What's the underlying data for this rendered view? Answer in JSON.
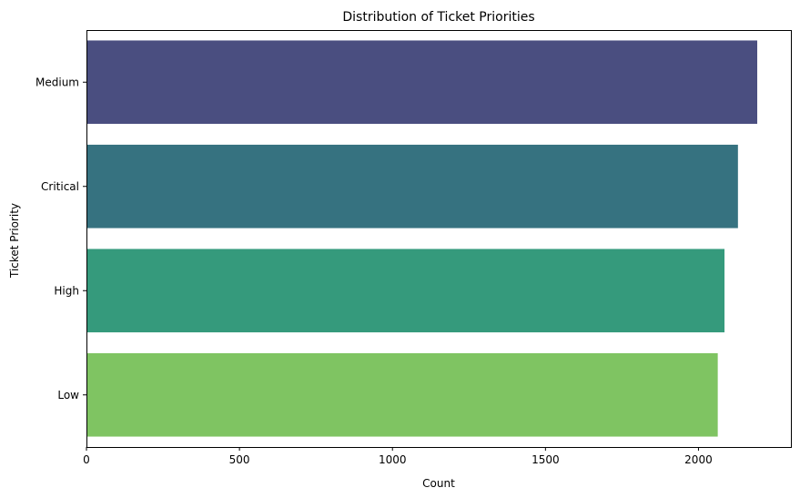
{
  "chart_data": {
    "type": "bar",
    "orientation": "horizontal",
    "title": "Distribution of Ticket Priorities",
    "xlabel": "Count",
    "ylabel": "Ticket Priority",
    "categories": [
      "Medium",
      "Critical",
      "High",
      "Low"
    ],
    "values": [
      2192,
      2129,
      2085,
      2063
    ],
    "colors": [
      "#4a4e80",
      "#367280",
      "#359a7c",
      "#7fc462"
    ],
    "xlim": [
      0,
      2302
    ],
    "xticks": [
      0,
      500,
      1000,
      1500,
      2000
    ],
    "grid": false,
    "legend": "none"
  }
}
